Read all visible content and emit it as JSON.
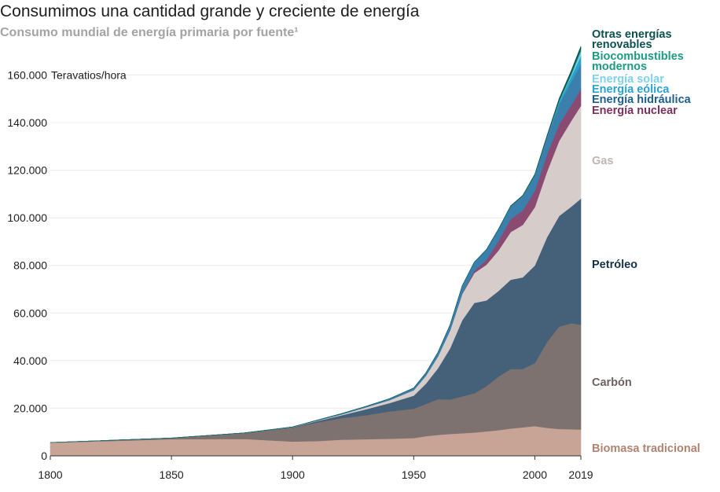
{
  "title": "Consumimos una cantidad grande y creciente de energía",
  "subtitle": "Consumo mundial de energía primaria por fuente¹",
  "chart_data": {
    "type": "area",
    "stacked": true,
    "unit_label": "Teravatios/hora",
    "xlim": [
      1800,
      2019
    ],
    "ylim": [
      0,
      175000
    ],
    "x_ticks": [
      1800,
      1850,
      1900,
      1950,
      2000,
      2019
    ],
    "x_tick_labels": [
      "1800",
      "1850",
      "1900",
      "1950",
      "2000",
      "2019"
    ],
    "y_ticks": [
      0,
      20000,
      40000,
      60000,
      80000,
      100000,
      120000,
      140000,
      160000
    ],
    "y_tick_labels": [
      "0",
      "20.000",
      "40.000",
      "60.000",
      "80.000",
      "100.000",
      "120.000",
      "140.000",
      "160.000"
    ],
    "grid": true,
    "legend_position": "right",
    "x": [
      1800,
      1850,
      1880,
      1900,
      1910,
      1920,
      1930,
      1940,
      1950,
      1955,
      1960,
      1965,
      1970,
      1975,
      1980,
      1985,
      1990,
      1995,
      2000,
      2005,
      2010,
      2015,
      2019
    ],
    "series": [
      {
        "name": "Biomasa tradicional",
        "color": "#c7a495",
        "values": [
          5500,
          7000,
          7100,
          6000,
          6200,
          6800,
          7000,
          7200,
          7500,
          8300,
          8800,
          9200,
          9500,
          9800,
          10300,
          10800,
          11500,
          12000,
          12500,
          11800,
          11300,
          11200,
          11100
        ]
      },
      {
        "name": "Carbón",
        "color": "#7d726f",
        "values": [
          100,
          500,
          2500,
          5800,
          7800,
          9000,
          10000,
          11500,
          12300,
          13500,
          15000,
          14500,
          15500,
          16500,
          19000,
          22500,
          25000,
          24500,
          26500,
          36000,
          43000,
          44500,
          44000
        ]
      },
      {
        "name": "Petróleo",
        "color": "#45617a",
        "values": [
          0,
          0,
          50,
          200,
          600,
          1200,
          2500,
          3500,
          5500,
          8500,
          13000,
          21500,
          32000,
          38000,
          36000,
          36000,
          37500,
          38500,
          41000,
          44000,
          46500,
          49000,
          53000
        ]
      },
      {
        "name": "Gas",
        "color": "#d6cdcb",
        "values": [
          0,
          0,
          0,
          100,
          200,
          400,
          800,
          1200,
          2300,
          3300,
          5000,
          7500,
          11000,
          12500,
          15000,
          17000,
          20000,
          22000,
          24500,
          27500,
          31500,
          36000,
          39000
        ]
      },
      {
        "name": "Energía nuclear",
        "color": "#8b4a72",
        "values": [
          0,
          0,
          0,
          0,
          0,
          0,
          0,
          0,
          0,
          0,
          0,
          100,
          200,
          1000,
          2000,
          4000,
          5500,
          6100,
          6800,
          7200,
          7000,
          6600,
          7000
        ]
      },
      {
        "name": "Energía hidráulica",
        "color": "#3b7fac",
        "values": [
          0,
          0,
          0,
          50,
          150,
          300,
          400,
          600,
          900,
          1200,
          1700,
          2200,
          3200,
          3600,
          4300,
          4900,
          5300,
          6000,
          6500,
          7000,
          8500,
          9900,
          10500
        ]
      },
      {
        "name": "Energía eólica",
        "color": "#2aa1cf",
        "values": [
          0,
          0,
          0,
          0,
          0,
          0,
          0,
          0,
          0,
          0,
          0,
          0,
          0,
          0,
          0,
          0,
          0,
          10,
          80,
          260,
          900,
          2200,
          3500
        ]
      },
      {
        "name": "Energía solar",
        "color": "#7fd0e8",
        "values": [
          0,
          0,
          0,
          0,
          0,
          0,
          0,
          0,
          0,
          0,
          0,
          0,
          0,
          0,
          0,
          0,
          0,
          0,
          0,
          5,
          80,
          600,
          1800
        ]
      },
      {
        "name": "Biocombustibles modernos",
        "color": "#1c9a83",
        "values": [
          0,
          0,
          0,
          0,
          0,
          0,
          0,
          0,
          0,
          0,
          0,
          0,
          0,
          0,
          0,
          0,
          50,
          100,
          120,
          200,
          600,
          900,
          1100
        ]
      },
      {
        "name": "Otras energías renovables",
        "color": "#0c5150",
        "values": [
          0,
          0,
          0,
          0,
          0,
          0,
          0,
          0,
          0,
          0,
          0,
          0,
          0,
          0,
          50,
          100,
          180,
          230,
          350,
          450,
          700,
          900,
          1100
        ]
      }
    ],
    "legend": [
      {
        "text": "Otras energías renovables",
        "lines": [
          "Otras energías",
          "renovables"
        ],
        "color": "#0c5150"
      },
      {
        "text": "Biocombustibles modernos",
        "lines": [
          "Biocombustibles",
          "modernos"
        ],
        "color": "#1c9a83"
      },
      {
        "text": "Energía solar",
        "lines": [
          "Energía solar"
        ],
        "color": "#7fd0e8"
      },
      {
        "text": "Energía eólica",
        "lines": [
          "Energía eólica"
        ],
        "color": "#2aa1cf"
      },
      {
        "text": "Energía hidráulica",
        "lines": [
          "Energía hidráulica"
        ],
        "color": "#1d5f8c"
      },
      {
        "text": "Energía nuclear",
        "lines": [
          "Energía nuclear"
        ],
        "color": "#7d2f5d"
      },
      {
        "text": "Gas",
        "lines": [
          "Gas"
        ],
        "color": "#bfb5b2"
      },
      {
        "text": "Petróleo",
        "lines": [
          "Petróleo"
        ],
        "color": "#14314a"
      },
      {
        "text": "Carbón",
        "lines": [
          "Carbón"
        ],
        "color": "#6c625f"
      },
      {
        "text": "Biomasa tradicional",
        "lines": [
          "Biomasa tradicional"
        ],
        "color": "#b08371"
      }
    ]
  }
}
